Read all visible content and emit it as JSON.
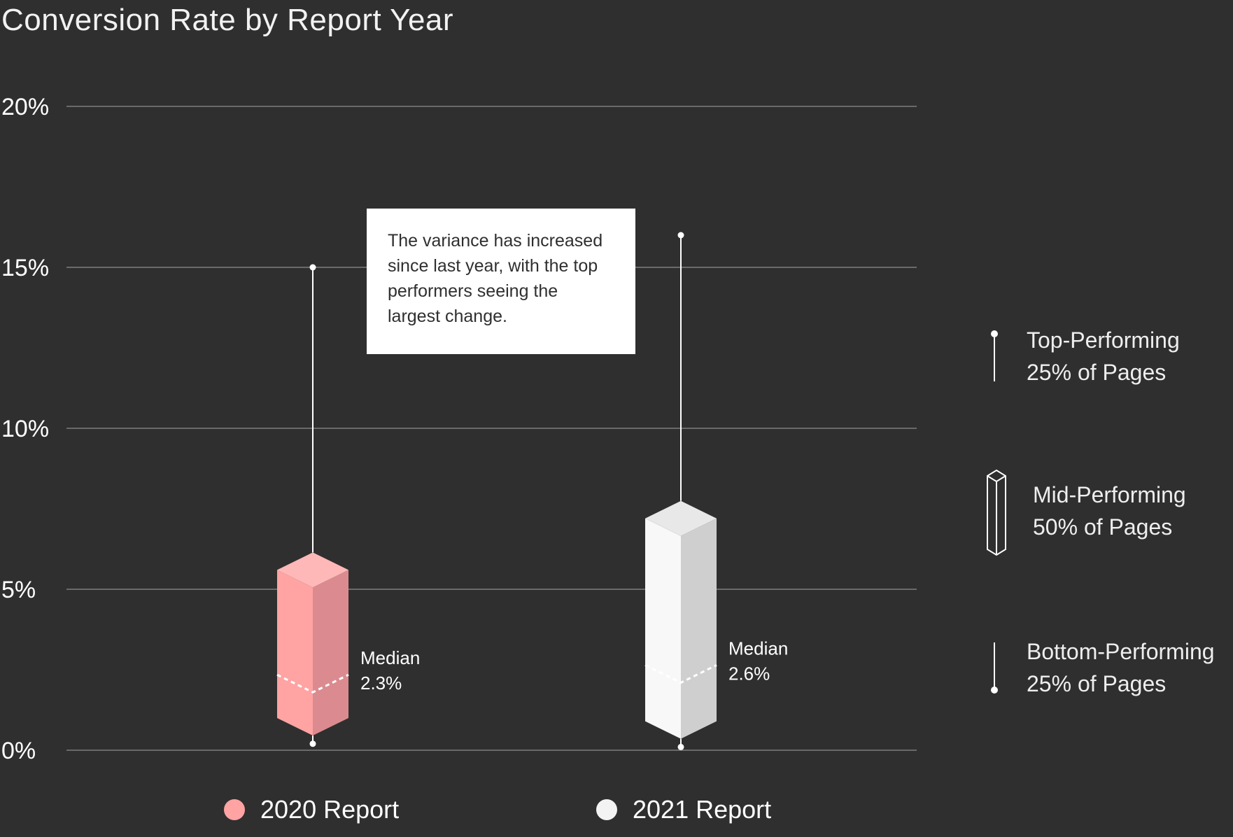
{
  "colors": {
    "background": "#2f2f2f",
    "grid": "#6a6a6a",
    "pink_front": "#ffa3a3",
    "pink_side": "#db8b8f",
    "pink_top": "#ffb8b8",
    "white_front": "#f8f8f8",
    "white_side": "#cfcfcf",
    "white_top": "#e8e8e8"
  },
  "annotation": {
    "lines": [
      "The variance has increased",
      "since last year, with the top",
      "performers seeing the",
      "largest change."
    ]
  },
  "shape_legend": {
    "top": [
      "Top-Performing",
      "25% of Pages"
    ],
    "mid": [
      "Mid-Performing",
      "50% of Pages"
    ],
    "bottom": [
      "Bottom-Performing",
      "25% of Pages"
    ]
  },
  "chart_data": {
    "type": "box",
    "title": "Conversion Rate by Report Year",
    "xlabel": "",
    "ylabel": "",
    "ylim": [
      0,
      20
    ],
    "yticks": [
      0,
      5,
      10,
      15,
      20
    ],
    "ytick_labels": [
      "0%",
      "5%",
      "10%",
      "15%",
      "20%"
    ],
    "grid": true,
    "legend_position": "bottom",
    "series": [
      {
        "name": "2020 Report",
        "color": "#ffa3a3",
        "min": 0.2,
        "q1": 1,
        "median": 2.3,
        "q3": 5.6,
        "max": 15,
        "median_label": [
          "Median",
          "2.3%"
        ]
      },
      {
        "name": "2021 Report",
        "color": "#f8f8f8",
        "min": 0.1,
        "q1": 0.9,
        "median": 2.6,
        "q3": 7.2,
        "max": 16,
        "median_label": [
          "Median",
          "2.6%"
        ]
      }
    ]
  }
}
